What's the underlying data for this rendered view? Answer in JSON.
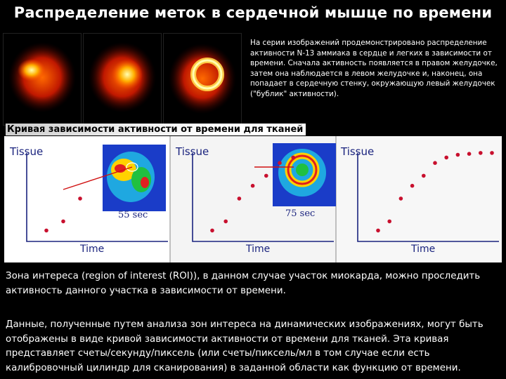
{
  "title": "Распределение меток в сердечной мышце по времени",
  "description": "На серии изображений продемонстрировано распределение активности N-13 аммиака в сердце и легких в зависимости от времени. Сначала активность появляется в правом желудочке, затем она наблюдается в левом желудочке и, наконец, она попадает в сердечную стенку, окружающую левый желудочек (\"бублик\" активности).",
  "section_title": "Кривая зависимости активности от времени для тканей",
  "panels": [
    {
      "ylabel": "Tissue",
      "xlabel": "Time",
      "inset_label": "55 sec"
    },
    {
      "ylabel": "Tissue",
      "xlabel": "Time",
      "inset_label": "75 sec"
    },
    {
      "ylabel": "Tissue",
      "xlabel": "Time",
      "inset_label": ""
    }
  ],
  "paragraph1": "Зона интереса (region of interest (ROI)), в данном случае участок миокарда, можно проследить активность данного участка в зависимости от времени.",
  "paragraph2": "Данные, полученные путем анализа зон интереса на динамических изображениях, могут быть отображены в виде кривой зависимости активности от времени для тканей. Эта кривая представляет счеты/секунду/пиксель (или счеты/пиксель/мл в том случае если есть калибровочный цилиндр для сканирования) в заданной области как функцию от времени.",
  "colors": {
    "point": "#c8102e",
    "axis": "#1a237e",
    "label": "#1a237e",
    "connector": "#d01010"
  },
  "chart_data": [
    {
      "type": "scatter",
      "x": [
        1,
        2,
        3
      ],
      "y": [
        0.12,
        0.22,
        0.47
      ]
    },
    {
      "type": "scatter",
      "x": [
        1,
        2,
        3,
        4,
        5,
        6,
        7
      ],
      "y": [
        0.12,
        0.22,
        0.47,
        0.61,
        0.72,
        0.86,
        0.92
      ]
    },
    {
      "type": "scatter",
      "x": [
        1,
        2,
        3,
        4,
        5,
        6,
        7,
        8,
        9,
        10,
        11
      ],
      "y": [
        0.12,
        0.22,
        0.47,
        0.61,
        0.72,
        0.86,
        0.92,
        0.95,
        0.96,
        0.97,
        0.97
      ]
    }
  ]
}
